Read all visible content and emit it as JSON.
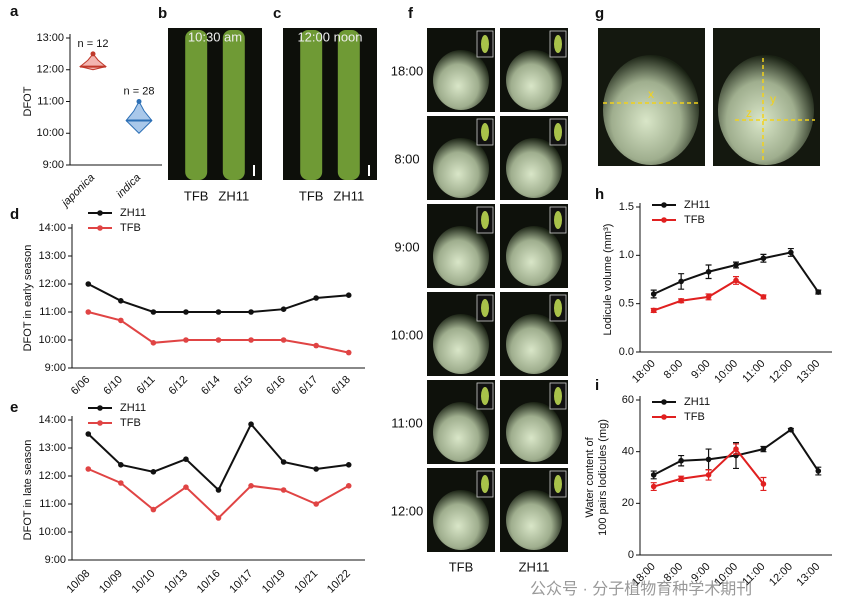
{
  "photos": [
    {
      "panel": "b",
      "caption": "10:30 am",
      "labels": [
        "TFB",
        "ZH11"
      ]
    },
    {
      "panel": "c",
      "caption": "12:00 noon",
      "labels": [
        "TFB",
        "ZH11"
      ]
    },
    {
      "panel": "f",
      "rows": [
        "18:00",
        "8:00",
        "9:00",
        "10:00",
        "11:00",
        "12:00"
      ],
      "labels": [
        "TFB",
        "ZH11"
      ]
    },
    {
      "panel": "g",
      "marks": [
        "x",
        "y",
        "z"
      ]
    }
  ],
  "watermark": "公众号 · 分子植物育种学术期刊",
  "chart_data": [
    {
      "type": "violin",
      "panel": "a",
      "ylabel": [
        "DFOT"
      ],
      "categories": [
        "japonica",
        "indica"
      ],
      "values": [
        12.1,
        10.4
      ],
      "min": [
        12.0,
        10.0
      ],
      "max": [
        12.5,
        11.0
      ],
      "annotations": [
        "n = 12",
        "n = 28"
      ],
      "colors": [
        "#c0392b",
        "#2c6fb5"
      ],
      "fills": [
        "#f3b5b0",
        "#a9c8ea"
      ],
      "ylim": [
        9,
        13
      ],
      "yticks": [
        {
          "value": 9,
          "label": "9:00"
        },
        {
          "value": 10,
          "label": "10:00"
        },
        {
          "value": 11,
          "label": "11:00"
        },
        {
          "value": 12,
          "label": "12:00"
        },
        {
          "value": 13,
          "label": "13:00"
        }
      ]
    },
    {
      "type": "line",
      "panel": "d",
      "ylabel": [
        "DFOT in early season"
      ],
      "categories": [
        "6/06",
        "6/10",
        "6/11",
        "6/12",
        "6/14",
        "6/15",
        "6/16",
        "6/17",
        "6/18"
      ],
      "series": [
        {
          "name": "ZH11",
          "color": "#111111",
          "values": [
            12.0,
            11.4,
            11.0,
            11.0,
            11.0,
            11.0,
            11.1,
            11.5,
            11.6
          ]
        },
        {
          "name": "TFB",
          "color": "#e04444",
          "values": [
            11.0,
            10.7,
            9.9,
            10.0,
            10.0,
            10.0,
            10.0,
            9.8,
            9.55
          ]
        }
      ],
      "ylim": [
        9,
        14
      ],
      "yticks": [
        {
          "value": 9,
          "label": "9:00"
        },
        {
          "value": 10,
          "label": "10:00"
        },
        {
          "value": 11,
          "label": "11:00"
        },
        {
          "value": 12,
          "label": "12:00"
        },
        {
          "value": 13,
          "label": "13:00"
        },
        {
          "value": 14,
          "label": "14:00"
        }
      ]
    },
    {
      "type": "line",
      "panel": "e",
      "ylabel": [
        "DFOT in late season"
      ],
      "categories": [
        "10/08",
        "10/09",
        "10/10",
        "10/13",
        "10/16",
        "10/17",
        "10/19",
        "10/21",
        "10/22"
      ],
      "series": [
        {
          "name": "ZH11",
          "color": "#111111",
          "values": [
            13.5,
            12.4,
            12.15,
            12.6,
            11.5,
            13.85,
            12.5,
            12.25,
            12.4
          ]
        },
        {
          "name": "TFB",
          "color": "#e04444",
          "values": [
            12.25,
            11.75,
            10.8,
            11.6,
            10.5,
            11.65,
            11.5,
            11.0,
            11.65
          ]
        }
      ],
      "ylim": [
        9,
        14
      ],
      "yticks": [
        {
          "value": 9,
          "label": "9:00"
        },
        {
          "value": 10,
          "label": "10:00"
        },
        {
          "value": 11,
          "label": "11:00"
        },
        {
          "value": 12,
          "label": "12:00"
        },
        {
          "value": 13,
          "label": "13:00"
        },
        {
          "value": 14,
          "label": "14:00"
        }
      ]
    },
    {
      "type": "line",
      "panel": "h",
      "ylabel": [
        "Lodicule volume (mm³)"
      ],
      "categories": [
        "18:00",
        "8:00",
        "9:00",
        "10:00",
        "11:00",
        "12:00",
        "13:00"
      ],
      "series": [
        {
          "name": "ZH11",
          "color": "#111111",
          "values": [
            0.6,
            0.73,
            0.83,
            0.9,
            0.97,
            1.03,
            0.62
          ],
          "errors": [
            0.04,
            0.08,
            0.07,
            0.03,
            0.04,
            0.04,
            0.02
          ]
        },
        {
          "name": "TFB",
          "color": "#e02020",
          "values": [
            0.43,
            0.53,
            0.57,
            0.74,
            0.57,
            null,
            null
          ],
          "errors": [
            0.02,
            0.02,
            0.03,
            0.04,
            0.02,
            null,
            null
          ]
        }
      ],
      "ylim": [
        0,
        1.5
      ],
      "yticks": [
        {
          "value": 0,
          "label": "0.0"
        },
        0.5,
        {
          "value": 1,
          "label": "1.0"
        },
        1.5
      ]
    },
    {
      "type": "line",
      "panel": "i",
      "ylabel": [
        "Water content of",
        "100 pairs lodicules (mg)"
      ],
      "categories": [
        "18:00",
        "8:00",
        "9:00",
        "10:00",
        "11:00",
        "12:00",
        "13:00"
      ],
      "series": [
        {
          "name": "ZH11",
          "color": "#111111",
          "values": [
            31,
            36.5,
            37,
            38.5,
            41,
            48.5,
            32.5
          ],
          "errors": [
            1.5,
            2,
            4,
            5,
            1,
            0.5,
            1.5
          ]
        },
        {
          "name": "TFB",
          "color": "#e02020",
          "values": [
            26.5,
            29.5,
            31,
            41,
            27.5,
            null,
            null
          ],
          "errors": [
            1.5,
            1,
            2,
            2,
            2.5,
            null,
            null
          ]
        }
      ],
      "ylim": [
        0,
        60
      ],
      "yticks": [
        0,
        20,
        40,
        60
      ]
    }
  ]
}
